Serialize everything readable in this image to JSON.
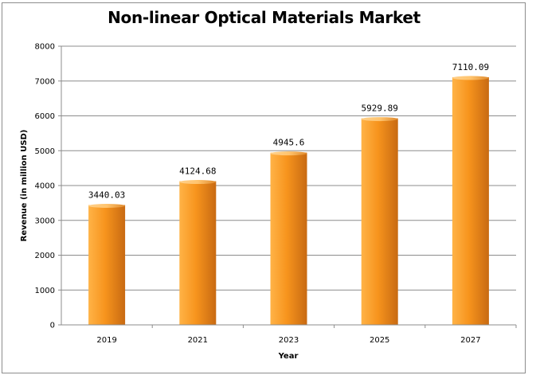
{
  "chart_data": {
    "type": "bar",
    "title": "Non-linear Optical Materials Market",
    "xlabel": "Year",
    "ylabel": "Revenue (in million USD)",
    "categories": [
      "2019",
      "2021",
      "2023",
      "2025",
      "2027"
    ],
    "values": [
      3440.03,
      4124.68,
      4945.6,
      5929.89,
      7110.09
    ],
    "value_labels": [
      "3440.03",
      "4124.68",
      "4945.6",
      "5929.89",
      "7110.09"
    ],
    "ylim": [
      0,
      8000
    ],
    "yticks": [
      "0",
      "1000",
      "2000",
      "3000",
      "4000",
      "5000",
      "6000",
      "7000",
      "8000"
    ],
    "grid": true,
    "legend": "none",
    "colors": {
      "bar_light": "#ffb347",
      "bar_mid": "#f7941d",
      "bar_dark": "#c86a12"
    }
  }
}
